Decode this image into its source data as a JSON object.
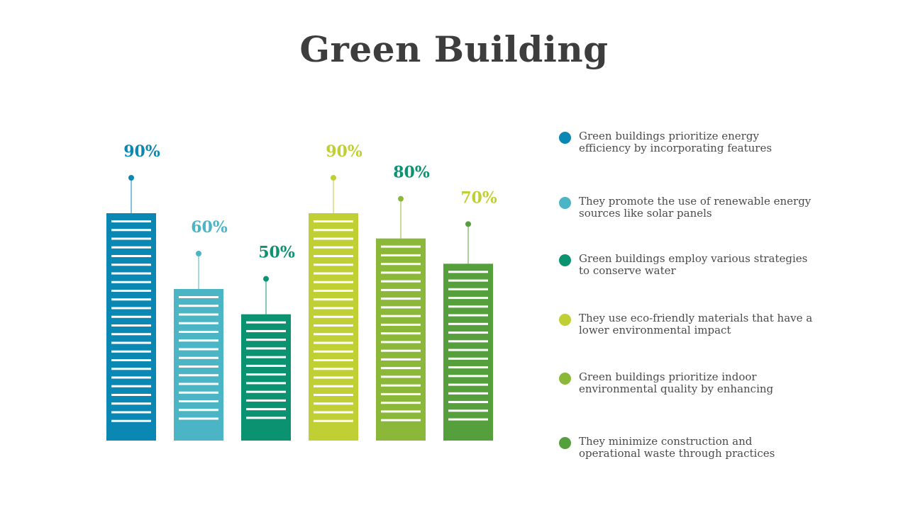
{
  "title": "Green Building",
  "chart_data": {
    "type": "bar",
    "categories": [
      "",
      "",
      "",
      "",
      "",
      ""
    ],
    "values": [
      90,
      60,
      50,
      90,
      80,
      70
    ],
    "value_labels": [
      "90%",
      "60%",
      "50%",
      "90%",
      "80%",
      "70%"
    ],
    "colors": [
      "#0b87b4",
      "#4bb5c5",
      "#0a9271",
      "#c0cf34",
      "#8cb83a",
      "#55a03c"
    ],
    "label_colors": [
      "#0b87b4",
      "#4bb5c5",
      "#0a9271",
      "#c0cf34",
      "#0a9271",
      "#c0cf34"
    ],
    "ylim": [
      0,
      100
    ],
    "grid": false,
    "legend": "right",
    "legend_entries": [
      "Green buildings prioritize energy efficiency by incorporating features",
      "They promote the use of renewable energy sources like solar panels",
      "Green buildings employ various strategies to conserve water",
      "They use eco-friendly materials that have a lower environmental impact",
      "Green buildings prioritize indoor environmental quality by enhancing",
      "They minimize construction and operational waste through practices"
    ]
  }
}
